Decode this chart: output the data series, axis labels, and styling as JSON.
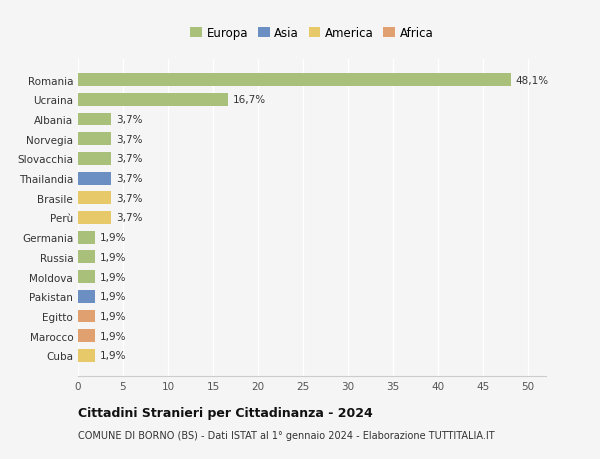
{
  "countries": [
    "Romania",
    "Ucraina",
    "Albania",
    "Norvegia",
    "Slovacchia",
    "Thailandia",
    "Brasile",
    "Perù",
    "Germania",
    "Russia",
    "Moldova",
    "Pakistan",
    "Egitto",
    "Marocco",
    "Cuba"
  ],
  "values": [
    48.1,
    16.7,
    3.7,
    3.7,
    3.7,
    3.7,
    3.7,
    3.7,
    1.9,
    1.9,
    1.9,
    1.9,
    1.9,
    1.9,
    1.9
  ],
  "labels": [
    "48,1%",
    "16,7%",
    "3,7%",
    "3,7%",
    "3,7%",
    "3,7%",
    "3,7%",
    "3,7%",
    "1,9%",
    "1,9%",
    "1,9%",
    "1,9%",
    "1,9%",
    "1,9%",
    "1,9%"
  ],
  "colors": [
    "#a8c07a",
    "#a8c07a",
    "#a8c07a",
    "#a8c07a",
    "#a8c07a",
    "#6b8fc2",
    "#e8c96a",
    "#e8c96a",
    "#a8c07a",
    "#a8c07a",
    "#a8c07a",
    "#6b8fc2",
    "#e0a070",
    "#e0a070",
    "#e8c96a"
  ],
  "continents": [
    "Europa",
    "Asia",
    "America",
    "Africa"
  ],
  "legend_colors": [
    "#a8c07a",
    "#6b8fc2",
    "#e8c96a",
    "#e0a070"
  ],
  "title": "Cittadini Stranieri per Cittadinanza - 2024",
  "subtitle": "COMUNE DI BORNO (BS) - Dati ISTAT al 1° gennaio 2024 - Elaborazione TUTTITALIA.IT",
  "xlim": [
    0,
    52
  ],
  "xticks": [
    0,
    5,
    10,
    15,
    20,
    25,
    30,
    35,
    40,
    45,
    50
  ],
  "background_color": "#f5f5f5",
  "grid_color": "#ffffff",
  "bar_height": 0.65,
  "label_fontsize": 7.5,
  "tick_fontsize": 7.5
}
